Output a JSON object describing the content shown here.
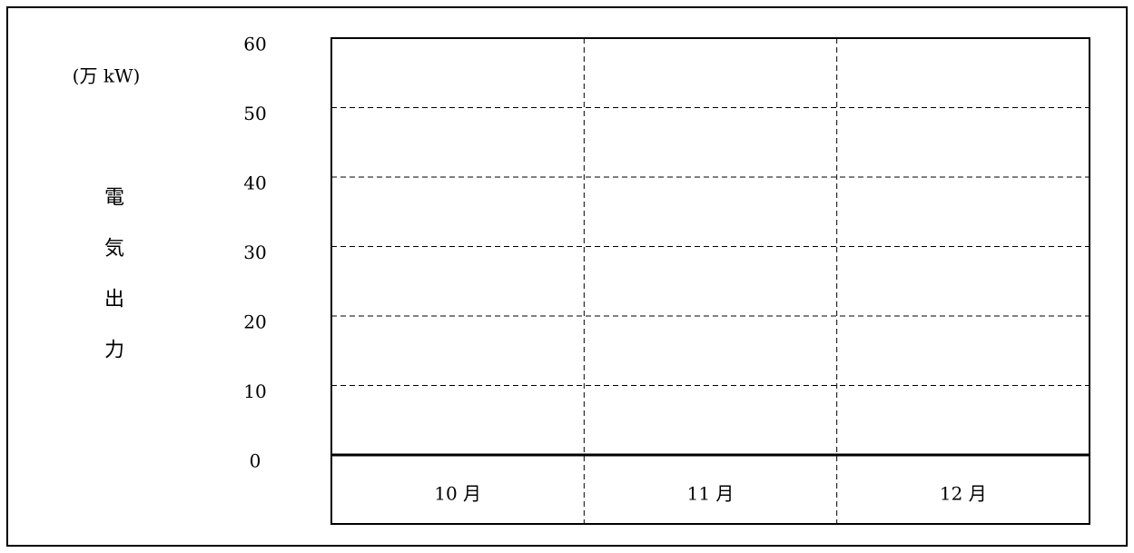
{
  "chart_data": {
    "type": "line",
    "y_unit": "(万 kW)",
    "y_axis_label": "電気出力",
    "categories": [
      "10 月",
      "11 月",
      "12 月"
    ],
    "ylim": [
      0,
      60
    ],
    "yticks": [
      0,
      10,
      20,
      30,
      40,
      50,
      60
    ],
    "grid": true
  }
}
